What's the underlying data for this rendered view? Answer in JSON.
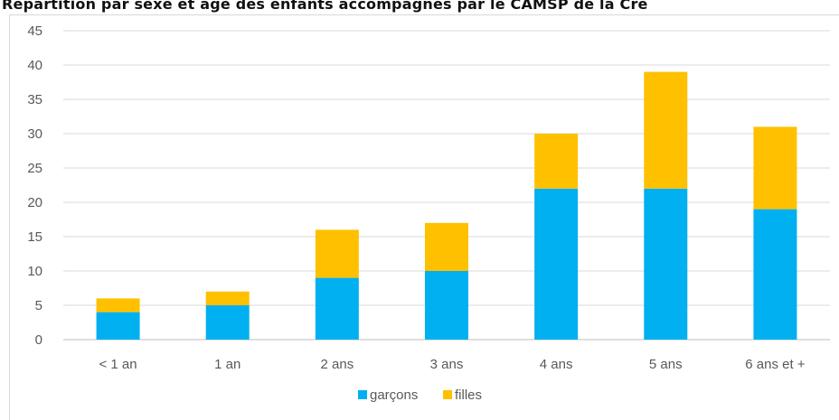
{
  "chart_data": {
    "type": "bar",
    "stacked": true,
    "title": "Répartition par sexe et âge des enfants accompagnés par le CAMSP de la Crè",
    "xlabel": "",
    "ylabel": "",
    "ylim": [
      0,
      45
    ],
    "yticks": [
      0,
      5,
      10,
      15,
      20,
      25,
      30,
      35,
      40,
      45
    ],
    "categories": [
      "< 1 an",
      "1 an",
      "2 ans",
      "3 ans",
      "4 ans",
      "5 ans",
      "6 ans et +"
    ],
    "series": [
      {
        "name": "garçons",
        "color": "#00b0f0",
        "values": [
          4,
          5,
          9,
          10,
          22,
          22,
          19
        ]
      },
      {
        "name": "filles",
        "color": "#ffc000",
        "values": [
          2,
          2,
          7,
          7,
          8,
          17,
          12
        ]
      }
    ],
    "grid": true,
    "legend_position": "bottom"
  }
}
